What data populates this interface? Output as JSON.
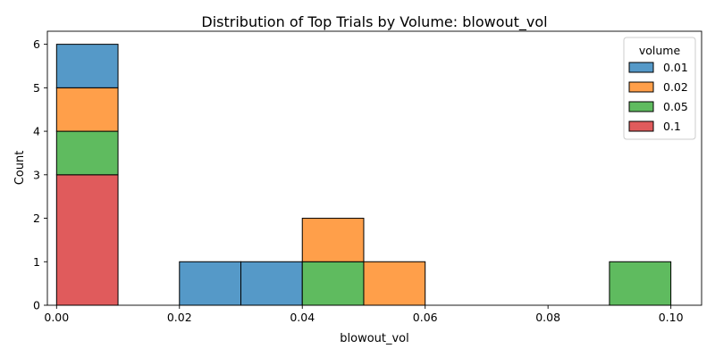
{
  "chart_data": {
    "type": "bar",
    "stacked": true,
    "title": "Distribution of Top Trials by Volume: blowout_vol",
    "xlabel": "blowout_vol",
    "ylabel": "Count",
    "xlim": [
      -0.0015,
      0.105
    ],
    "ylim": [
      0,
      6.3
    ],
    "xticks": [
      0.0,
      0.02,
      0.04,
      0.06,
      0.08,
      0.1
    ],
    "xtick_labels": [
      "0.00",
      "0.02",
      "0.04",
      "0.06",
      "0.08",
      "0.10"
    ],
    "yticks": [
      0,
      1,
      2,
      3,
      4,
      5,
      6
    ],
    "ytick_labels": [
      "0",
      "1",
      "2",
      "3",
      "4",
      "5",
      "6"
    ],
    "grid": false,
    "bin_width": 0.01,
    "bins": [
      0.0,
      0.01,
      0.02,
      0.03,
      0.04,
      0.05,
      0.06,
      0.07,
      0.08,
      0.09
    ],
    "series": [
      {
        "name": "0.1",
        "color": "#e05b5c",
        "counts": [
          3,
          0,
          0,
          0,
          0,
          0,
          0,
          0,
          0,
          0
        ]
      },
      {
        "name": "0.05",
        "color": "#5fbb5f",
        "counts": [
          1,
          0,
          0,
          0,
          1,
          0,
          0,
          0,
          0,
          1
        ]
      },
      {
        "name": "0.02",
        "color": "#ff9f4a",
        "counts": [
          1,
          0,
          0,
          0,
          1,
          1,
          0,
          0,
          0,
          0
        ]
      },
      {
        "name": "0.01",
        "color": "#5599c8",
        "counts": [
          1,
          0,
          1,
          1,
          0,
          0,
          0,
          0,
          0,
          0
        ]
      }
    ],
    "legend": {
      "title": "volume",
      "placement": "top-right",
      "order": [
        "0.01",
        "0.02",
        "0.05",
        "0.1"
      ]
    }
  }
}
